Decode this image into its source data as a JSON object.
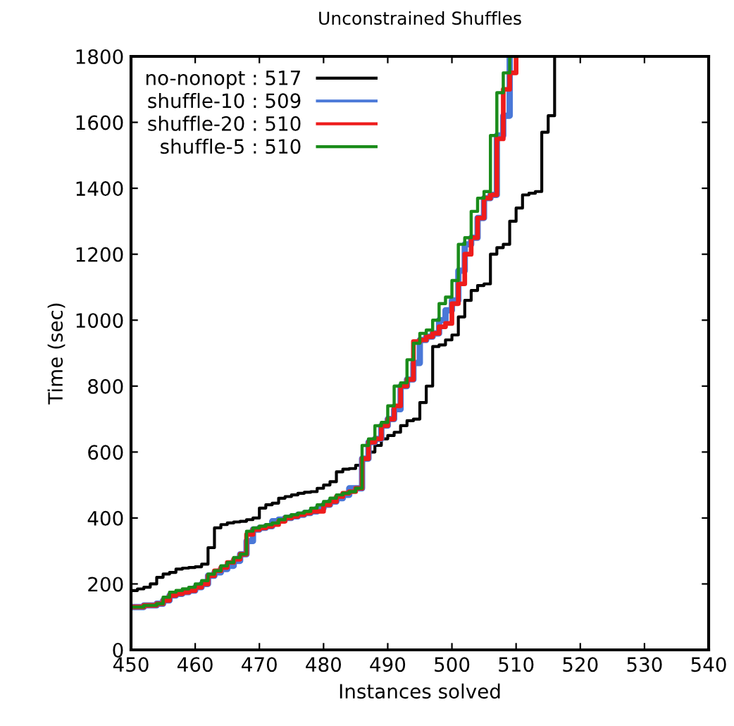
{
  "chart_data": {
    "type": "step",
    "title": "Unconstrained Shuffles",
    "xlabel": "Instances solved",
    "ylabel": "Time (sec)",
    "xlim": [
      450,
      540
    ],
    "xticks": [
      450,
      460,
      470,
      480,
      490,
      500,
      510,
      520,
      530,
      540
    ],
    "ylim": [
      0,
      1800
    ],
    "yticks": [
      0,
      200,
      400,
      600,
      800,
      1000,
      1200,
      1400,
      1600,
      1800
    ],
    "legend": "top left",
    "grid": false,
    "marker": "none",
    "line_style": "solid",
    "series": [
      {
        "name": "no-nonopt : 517",
        "color": "#000000",
        "x": [
          450,
          451,
          452,
          453,
          454,
          455,
          456,
          457,
          458,
          459,
          460,
          461,
          462,
          463,
          464,
          465,
          466,
          467,
          468,
          469,
          470,
          471,
          472,
          473,
          474,
          475,
          476,
          477,
          478,
          479,
          480,
          481,
          482,
          483,
          484,
          485,
          486,
          487,
          488,
          489,
          490,
          491,
          492,
          493,
          494,
          495,
          496,
          497,
          498,
          499,
          500,
          501,
          502,
          503,
          504,
          505,
          506,
          507,
          508,
          509,
          510,
          511,
          512,
          513,
          514,
          515,
          516,
          517
        ],
        "values": [
          180,
          185,
          190,
          200,
          220,
          230,
          235,
          245,
          248,
          250,
          252,
          260,
          310,
          370,
          380,
          385,
          388,
          390,
          395,
          400,
          430,
          440,
          445,
          460,
          465,
          470,
          475,
          478,
          480,
          490,
          500,
          510,
          540,
          548,
          550,
          560,
          580,
          600,
          620,
          640,
          650,
          660,
          680,
          695,
          700,
          750,
          800,
          920,
          925,
          940,
          955,
          1010,
          1060,
          1090,
          1105,
          1110,
          1200,
          1220,
          1230,
          1300,
          1340,
          1380,
          1385,
          1390,
          1570,
          1620,
          1800,
          1800
        ]
      },
      {
        "name": "shuffle-10 : 509",
        "color": "#4a78d8",
        "x": [
          450,
          452,
          454,
          455,
          456,
          457,
          458,
          459,
          460,
          461,
          462,
          463,
          464,
          465,
          466,
          467,
          468,
          469,
          470,
          471,
          472,
          473,
          474,
          475,
          476,
          477,
          478,
          479,
          480,
          481,
          482,
          483,
          484,
          485,
          486,
          487,
          488,
          489,
          490,
          491,
          492,
          493,
          494,
          495,
          496,
          497,
          498,
          499,
          500,
          501,
          502,
          503,
          504,
          505,
          506,
          507,
          508,
          509
        ],
        "values": [
          130,
          135,
          140,
          150,
          165,
          170,
          175,
          180,
          190,
          200,
          225,
          235,
          245,
          255,
          270,
          290,
          330,
          365,
          370,
          375,
          390,
          395,
          400,
          405,
          410,
          415,
          420,
          430,
          440,
          450,
          460,
          470,
          490,
          490,
          580,
          630,
          640,
          680,
          700,
          730,
          800,
          820,
          870,
          940,
          950,
          960,
          1000,
          1030,
          1060,
          1150,
          1230,
          1250,
          1310,
          1370,
          1380,
          1560,
          1620,
          1800
        ]
      },
      {
        "name": "shuffle-20 : 510",
        "color": "#ee1c1c",
        "x": [
          450,
          452,
          454,
          455,
          456,
          457,
          458,
          459,
          460,
          461,
          462,
          463,
          464,
          465,
          466,
          467,
          468,
          469,
          470,
          471,
          472,
          473,
          474,
          475,
          476,
          477,
          478,
          479,
          480,
          481,
          482,
          483,
          484,
          485,
          486,
          487,
          488,
          489,
          490,
          491,
          492,
          493,
          494,
          495,
          496,
          497,
          498,
          499,
          500,
          501,
          502,
          503,
          504,
          505,
          506,
          507,
          508,
          509,
          510
        ],
        "values": [
          130,
          135,
          140,
          150,
          165,
          170,
          175,
          180,
          190,
          200,
          225,
          240,
          250,
          265,
          275,
          290,
          350,
          365,
          370,
          375,
          380,
          390,
          400,
          405,
          410,
          415,
          420,
          420,
          440,
          450,
          465,
          475,
          480,
          490,
          580,
          630,
          640,
          680,
          700,
          740,
          800,
          820,
          935,
          940,
          950,
          960,
          980,
          990,
          1050,
          1110,
          1200,
          1250,
          1310,
          1370,
          1380,
          1550,
          1700,
          1750,
          1800
        ]
      },
      {
        "name": "shuffle-5 : 510",
        "color": "#1a8c1a",
        "x": [
          450,
          452,
          454,
          455,
          456,
          457,
          458,
          459,
          460,
          461,
          462,
          463,
          464,
          465,
          466,
          467,
          468,
          469,
          470,
          471,
          472,
          473,
          474,
          475,
          476,
          477,
          478,
          479,
          480,
          481,
          482,
          483,
          484,
          485,
          486,
          487,
          488,
          489,
          490,
          491,
          492,
          493,
          494,
          495,
          496,
          497,
          498,
          499,
          500,
          501,
          502,
          503,
          504,
          505,
          506,
          507,
          508,
          509,
          510
        ],
        "values": [
          130,
          135,
          140,
          160,
          175,
          180,
          185,
          190,
          200,
          210,
          230,
          240,
          255,
          265,
          280,
          290,
          360,
          370,
          375,
          380,
          385,
          395,
          405,
          410,
          415,
          420,
          430,
          440,
          450,
          460,
          470,
          475,
          480,
          490,
          620,
          640,
          680,
          690,
          740,
          800,
          810,
          880,
          930,
          960,
          970,
          1000,
          1050,
          1070,
          1120,
          1230,
          1250,
          1330,
          1370,
          1390,
          1560,
          1690,
          1750,
          1800,
          1800
        ]
      }
    ]
  }
}
